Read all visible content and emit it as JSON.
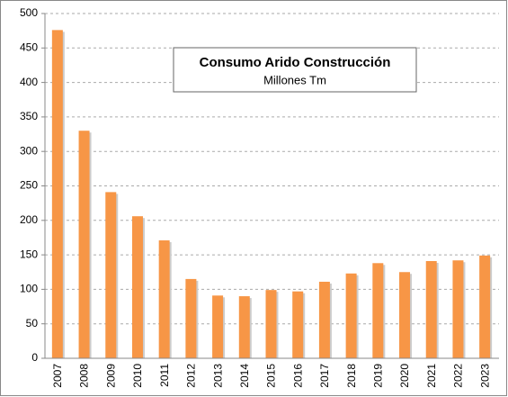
{
  "chart_data": {
    "type": "bar",
    "title": "Consumo Arido Construcción",
    "subtitle": "Millones Tm",
    "categories": [
      "2007",
      "2008",
      "2009",
      "2010",
      "2011",
      "2012",
      "2013",
      "2014",
      "2015",
      "2016",
      "2017",
      "2018",
      "2019",
      "2020",
      "2021",
      "2022",
      "2023"
    ],
    "values": [
      476,
      330,
      241,
      206,
      171,
      115,
      91,
      90,
      99,
      97,
      111,
      123,
      138,
      125,
      141,
      142,
      149
    ],
    "color": "#f79646",
    "ylim": [
      0,
      500
    ],
    "yticks": [
      0,
      50,
      100,
      150,
      200,
      250,
      300,
      350,
      400,
      450,
      500
    ],
    "grid": true
  }
}
